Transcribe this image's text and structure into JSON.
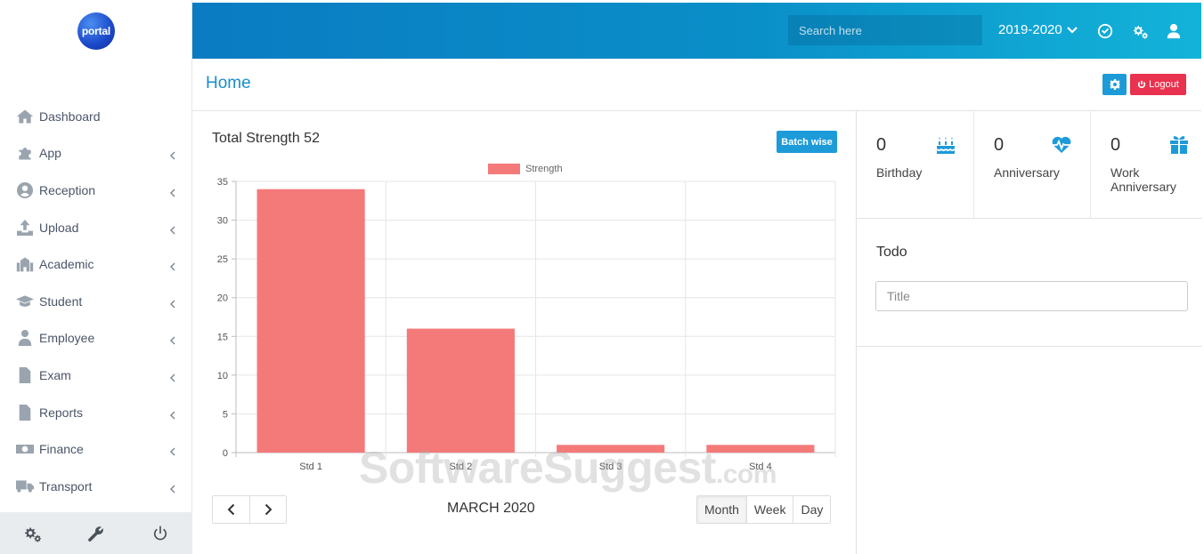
{
  "logo_text": "portal",
  "header": {
    "search_placeholder": "Search here",
    "academic_year": "2019-2020",
    "icons": [
      "check-circle-icon",
      "gears-icon",
      "user-icon"
    ]
  },
  "page": {
    "title": "Home",
    "logout_label": "Logout"
  },
  "sidebar": {
    "items": [
      {
        "label": "Dashboard",
        "icon": "home-icon",
        "has_caret": false
      },
      {
        "label": "App",
        "icon": "puzzle-icon",
        "has_caret": true
      },
      {
        "label": "Reception",
        "icon": "user-circle-icon",
        "has_caret": true
      },
      {
        "label": "Upload",
        "icon": "upload-icon",
        "has_caret": true
      },
      {
        "label": "Academic",
        "icon": "building-icon",
        "has_caret": true
      },
      {
        "label": "Student",
        "icon": "graduation-cap-icon",
        "has_caret": true
      },
      {
        "label": "Employee",
        "icon": "user-tie-icon",
        "has_caret": true
      },
      {
        "label": "Exam",
        "icon": "file-icon",
        "has_caret": true
      },
      {
        "label": "Reports",
        "icon": "file-alt-icon",
        "has_caret": true
      },
      {
        "label": "Finance",
        "icon": "money-icon",
        "has_caret": true
      },
      {
        "label": "Transport",
        "icon": "truck-icon",
        "has_caret": true
      }
    ],
    "footer_icons": [
      "gears-icon",
      "wrench-icon",
      "power-icon"
    ]
  },
  "chart_panel": {
    "title": "Total Strength 52",
    "batch_button": "Batch wise",
    "month_label": "MARCH 2020",
    "views": [
      "Month",
      "Week",
      "Day"
    ],
    "active_view": "Month"
  },
  "chart_data": {
    "type": "bar",
    "categories": [
      "Std 1",
      "Std 2",
      "Std 3",
      "Std 4"
    ],
    "series": [
      {
        "name": "Strength",
        "values": [
          34,
          16,
          1,
          1
        ]
      }
    ],
    "ylim": [
      0,
      35
    ],
    "yticks": [
      0,
      5,
      10,
      15,
      20,
      25,
      30,
      35
    ],
    "legend": "top",
    "grid": true,
    "color": "#f47a7a"
  },
  "stats": [
    {
      "value": "0",
      "label": "Birthday",
      "icon": "birthday-cake-icon"
    },
    {
      "value": "0",
      "label": "Anniversary",
      "icon": "heartbeat-icon"
    },
    {
      "value": "0",
      "label": "Work Anniversary",
      "icon": "gift-icon"
    }
  ],
  "todo": {
    "title": "Todo",
    "input_placeholder": "Title"
  },
  "watermark": {
    "main": "SoftwareSuggest",
    "suffix": ".com"
  },
  "colors": {
    "accent": "#1d9bd9",
    "danger": "#e8324f",
    "bar": "#f47a7a"
  }
}
